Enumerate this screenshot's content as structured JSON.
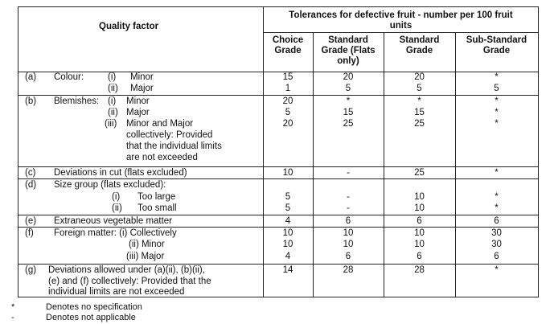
{
  "header": {
    "quality_factor": "Quality factor",
    "tolerances": "Tolerances for defective fruit - number per 100 fruit",
    "units": "units",
    "choice": [
      "Choice",
      "Grade"
    ],
    "std_flats": [
      "Standard",
      "Grade (Flats",
      "only)"
    ],
    "standard": [
      "Standard",
      "Grade"
    ],
    "sub_standard": [
      "Sub-Standard",
      "Grade"
    ]
  },
  "rows": {
    "a": {
      "letter": "(a)",
      "label": "Colour:",
      "items": [
        {
          "num": "(i)",
          "text": "Minor",
          "vals": [
            "15",
            "20",
            "20",
            "*"
          ]
        },
        {
          "num": "(ii)",
          "text": "Major",
          "vals": [
            "1",
            "5",
            "5",
            "5"
          ]
        }
      ]
    },
    "b": {
      "letter": "(b)",
      "label": "Blemishes:",
      "items": [
        {
          "num": "(i)",
          "text": "Minor",
          "vals": [
            "20",
            "*",
            "*",
            "*"
          ]
        },
        {
          "num": "(ii)",
          "text": "Major",
          "vals": [
            "5",
            "15",
            "15",
            "*"
          ]
        },
        {
          "num": "(iii)",
          "text": "Minor and Major",
          "vals": [
            "20",
            "25",
            "25",
            "*"
          ]
        }
      ],
      "continuation": [
        "collectively: Provided",
        "that the individual limits",
        "are not exceeded"
      ]
    },
    "c": {
      "letter": "(c)",
      "text": "Deviations in cut (flats excluded)",
      "vals": [
        "10",
        "-",
        "25",
        "*"
      ]
    },
    "d": {
      "letter": "(d)",
      "label": "Size group (flats excluded):",
      "items": [
        {
          "num": "(i)",
          "text": "Too large",
          "vals": [
            "5",
            "-",
            "10",
            "*"
          ]
        },
        {
          "num": "(ii)",
          "text": "Too small",
          "vals": [
            "5",
            "-",
            "10",
            "*"
          ]
        }
      ]
    },
    "e": {
      "letter": "(e)",
      "text": "Extraneous vegetable matter",
      "vals": [
        "4",
        "6",
        "6",
        "6"
      ]
    },
    "f": {
      "letter": "(f)",
      "label": "Foreign matter: (i) Collectively",
      "items": [
        {
          "text": "(i) Collectively",
          "vals": [
            "10",
            "10",
            "10",
            "30"
          ]
        },
        {
          "text": "(ii) Minor",
          "vals": [
            "10",
            "10",
            "10",
            "30"
          ]
        },
        {
          "text": "(iii) Major",
          "vals": [
            "4",
            "6",
            "6",
            "6"
          ]
        }
      ]
    },
    "g": {
      "letter": "(g)",
      "lines": [
        "Deviations allowed under (a)(ii), (b)(ii),",
        "(e) and (f) collectively: Provided that the",
        "individual limits are not exceeded"
      ],
      "vals": [
        "14",
        "28",
        "28",
        "*"
      ]
    }
  },
  "footnotes": [
    {
      "symbol": "*",
      "text": "Denotes no specification"
    },
    {
      "symbol": "-",
      "text": "Denotes not applicable"
    }
  ]
}
